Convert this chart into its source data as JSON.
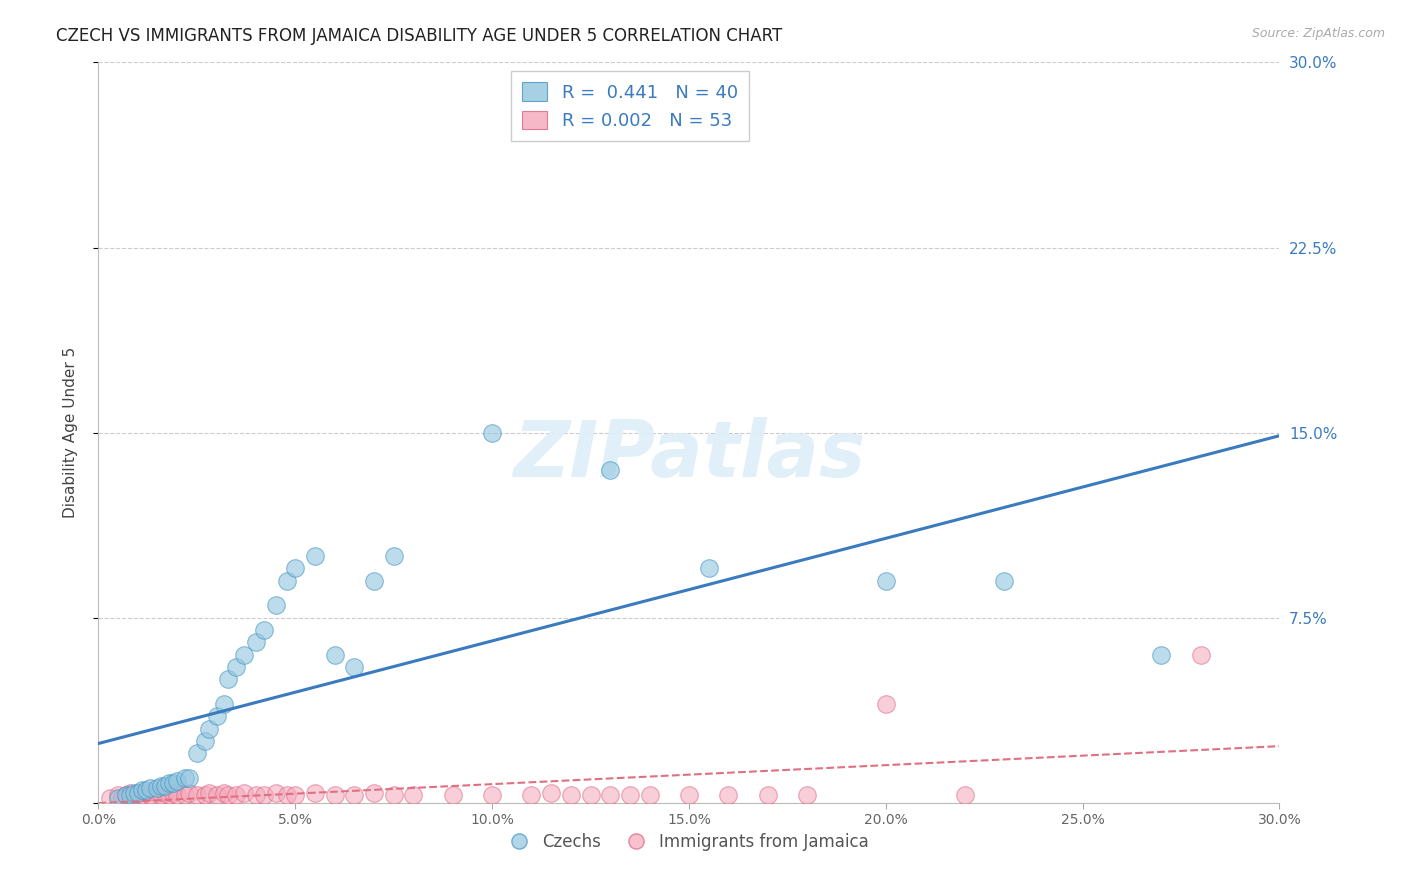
{
  "title": "CZECH VS IMMIGRANTS FROM JAMAICA DISABILITY AGE UNDER 5 CORRELATION CHART",
  "source": "Source: ZipAtlas.com",
  "ylabel": "Disability Age Under 5",
  "xlim": [
    0,
    0.3
  ],
  "ylim": [
    0,
    0.3
  ],
  "xticks": [
    0.0,
    0.05,
    0.1,
    0.15,
    0.2,
    0.25,
    0.3
  ],
  "yticks": [
    0.0,
    0.075,
    0.15,
    0.225,
    0.3
  ],
  "czech_R": 0.441,
  "czech_N": 40,
  "jamaica_R": 0.002,
  "jamaica_N": 53,
  "czech_color": "#92c5de",
  "jamaica_color": "#f4a7b9",
  "czech_edge_color": "#4393c3",
  "jamaica_edge_color": "#e06080",
  "czech_trend_color": "#3a7bbf",
  "jamaica_trend_color": "#e07080",
  "legend_label_czech": "Czechs",
  "legend_label_jamaica": "Immigrants from Jamaica",
  "watermark": "ZIPatlas",
  "background_color": "#ffffff",
  "czech_x": [
    0.005,
    0.007,
    0.008,
    0.009,
    0.01,
    0.011,
    0.012,
    0.013,
    0.015,
    0.016,
    0.017,
    0.018,
    0.019,
    0.02,
    0.022,
    0.023,
    0.025,
    0.027,
    0.028,
    0.03,
    0.032,
    0.033,
    0.035,
    0.037,
    0.04,
    0.042,
    0.045,
    0.048,
    0.05,
    0.055,
    0.06,
    0.065,
    0.07,
    0.075,
    0.1,
    0.13,
    0.155,
    0.2,
    0.23,
    0.27
  ],
  "czech_y": [
    0.002,
    0.003,
    0.003,
    0.004,
    0.004,
    0.005,
    0.005,
    0.006,
    0.006,
    0.007,
    0.007,
    0.008,
    0.008,
    0.009,
    0.01,
    0.01,
    0.02,
    0.025,
    0.03,
    0.035,
    0.04,
    0.05,
    0.055,
    0.06,
    0.065,
    0.07,
    0.08,
    0.09,
    0.095,
    0.1,
    0.06,
    0.055,
    0.09,
    0.1,
    0.15,
    0.135,
    0.095,
    0.09,
    0.09,
    0.06
  ],
  "jamaica_x": [
    0.003,
    0.005,
    0.006,
    0.007,
    0.008,
    0.009,
    0.01,
    0.011,
    0.012,
    0.013,
    0.015,
    0.016,
    0.017,
    0.018,
    0.019,
    0.02,
    0.022,
    0.023,
    0.025,
    0.027,
    0.028,
    0.03,
    0.032,
    0.033,
    0.035,
    0.037,
    0.04,
    0.042,
    0.045,
    0.048,
    0.05,
    0.055,
    0.06,
    0.065,
    0.07,
    0.075,
    0.08,
    0.09,
    0.1,
    0.11,
    0.115,
    0.12,
    0.125,
    0.13,
    0.135,
    0.14,
    0.15,
    0.16,
    0.17,
    0.18,
    0.2,
    0.22,
    0.28
  ],
  "jamaica_y": [
    0.002,
    0.003,
    0.002,
    0.003,
    0.004,
    0.003,
    0.004,
    0.003,
    0.004,
    0.003,
    0.004,
    0.003,
    0.004,
    0.003,
    0.004,
    0.003,
    0.003,
    0.004,
    0.003,
    0.003,
    0.004,
    0.003,
    0.004,
    0.003,
    0.003,
    0.004,
    0.003,
    0.003,
    0.004,
    0.003,
    0.003,
    0.004,
    0.003,
    0.003,
    0.004,
    0.003,
    0.003,
    0.003,
    0.003,
    0.003,
    0.004,
    0.003,
    0.003,
    0.003,
    0.003,
    0.003,
    0.003,
    0.003,
    0.003,
    0.003,
    0.04,
    0.003,
    0.06
  ],
  "czech_trend_intercept": 0.012,
  "czech_trend_slope": 0.44,
  "jamaica_trend_intercept": 0.005,
  "jamaica_trend_slope": 0.005
}
